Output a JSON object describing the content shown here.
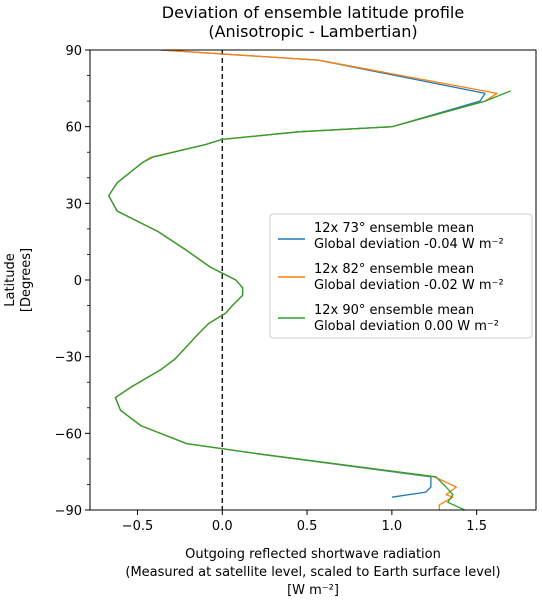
{
  "chart_data": {
    "type": "line",
    "title": "Deviation of ensemble latitude profile",
    "subtitle": "(Anisotropic - Lambertian)",
    "xlabel_lines": [
      "Outgoing reflected shortwave radiation",
      "(Measured at satellite level, scaled to Earth surface level)",
      "[W m⁻²]"
    ],
    "ylabel_lines": [
      "Latitude",
      "[Degrees]"
    ],
    "xlim": [
      -0.78,
      1.85
    ],
    "ylim": [
      -90,
      90
    ],
    "xticks": [
      -0.5,
      0.0,
      0.5,
      1.0,
      1.5
    ],
    "xtick_labels": [
      "−0.5",
      "0.0",
      "0.5",
      "1.0",
      "1.5"
    ],
    "yticks": [
      -90,
      -60,
      -30,
      0,
      30,
      60,
      90
    ],
    "ytick_labels": [
      "−90",
      "−60",
      "−30",
      "0",
      "30",
      "60",
      "90"
    ],
    "y_minor_ticks": [
      -80,
      -70,
      -50,
      -40,
      -20,
      -10,
      10,
      20,
      40,
      50,
      70,
      80
    ],
    "zero_line": true,
    "grid": false,
    "legend_position": "center-right",
    "series": [
      {
        "name_line1": "12x 73° ensemble mean",
        "name_line2": "Global deviation -0.04 W m⁻²",
        "color": "#1f77b4",
        "x": [
          -0.36,
          0.57,
          1.55,
          1.52,
          1.0,
          0.45,
          0.0,
          -0.1,
          -0.42,
          -0.47,
          -0.62,
          -0.67,
          -0.62,
          -0.38,
          -0.22,
          -0.07,
          0.08,
          0.12,
          0.12,
          0.06,
          0.02,
          -0.08,
          -0.14,
          -0.21,
          -0.28,
          -0.36,
          -0.54,
          -0.63,
          -0.6,
          -0.48,
          -0.21,
          0.21,
          1.23,
          1.23,
          1.2,
          1.0
        ],
        "y": [
          90,
          86,
          73,
          70,
          60,
          58,
          55,
          53,
          48,
          46,
          38,
          33,
          27,
          19,
          12,
          5,
          0,
          -3,
          -6,
          -10,
          -13,
          -17,
          -21,
          -26,
          -31,
          -35,
          -42,
          -46,
          -51,
          -57,
          -64,
          -68,
          -77,
          -81,
          -83,
          -85
        ]
      },
      {
        "name_line1": "12x 82° ensemble mean",
        "name_line2": "Global deviation -0.02 W m⁻²",
        "color": "#ff7f0e",
        "x": [
          -0.36,
          0.57,
          1.62,
          1.55,
          1.0,
          0.45,
          0.0,
          -0.1,
          -0.42,
          -0.47,
          -0.62,
          -0.67,
          -0.62,
          -0.38,
          -0.22,
          -0.07,
          0.08,
          0.12,
          0.12,
          0.06,
          0.02,
          -0.08,
          -0.14,
          -0.21,
          -0.28,
          -0.36,
          -0.54,
          -0.63,
          -0.6,
          -0.48,
          -0.21,
          0.21,
          1.25,
          1.38,
          1.32,
          1.36,
          1.28,
          1.28
        ],
        "y": [
          90,
          86,
          73,
          70,
          60,
          58,
          55,
          53,
          48,
          46,
          38,
          33,
          27,
          19,
          12,
          5,
          0,
          -3,
          -6,
          -10,
          -13,
          -17,
          -21,
          -26,
          -31,
          -35,
          -42,
          -46,
          -51,
          -57,
          -64,
          -68,
          -77,
          -81,
          -84,
          -85,
          -88,
          -90
        ]
      },
      {
        "name_line1": "12x 90° ensemble mean",
        "name_line2": "Global deviation 0.00 W m⁻²",
        "color": "#2ca02c",
        "x": [
          1.7,
          1.55,
          1.0,
          0.45,
          0.0,
          -0.1,
          -0.41,
          -0.47,
          -0.62,
          -0.67,
          -0.62,
          -0.38,
          -0.22,
          -0.07,
          0.08,
          0.12,
          0.12,
          0.06,
          0.02,
          -0.08,
          -0.14,
          -0.21,
          -0.28,
          -0.36,
          -0.54,
          -0.63,
          -0.6,
          -0.48,
          -0.21,
          0.21,
          1.26,
          1.32,
          1.36,
          1.33,
          1.43
        ],
        "y": [
          74,
          70,
          60,
          58,
          55,
          53,
          48,
          46,
          38,
          33,
          27,
          19,
          12,
          5,
          0,
          -3,
          -6,
          -10,
          -13,
          -17,
          -21,
          -26,
          -31,
          -35,
          -42,
          -46,
          -51,
          -57,
          -64,
          -68,
          -77,
          -81,
          -84,
          -87,
          -90
        ]
      }
    ]
  }
}
